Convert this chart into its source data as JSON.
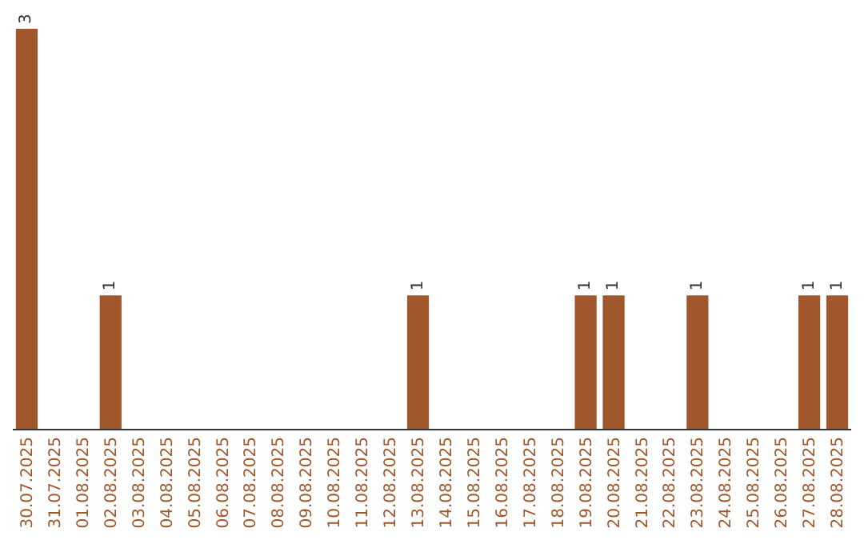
{
  "chart_data": {
    "type": "bar",
    "categories": [
      "30.07.2025",
      "31.07.2025",
      "01.08.2025",
      "02.08.2025",
      "03.08.2025",
      "04.08.2025",
      "05.08.2025",
      "06.08.2025",
      "07.08.2025",
      "08.08.2025",
      "09.08.2025",
      "10.08.2025",
      "11.08.2025",
      "12.08.2025",
      "13.08.2025",
      "14.08.2025",
      "15.08.2025",
      "16.08.2025",
      "17.08.2025",
      "18.08.2025",
      "19.08.2025",
      "20.08.2025",
      "21.08.2025",
      "22.08.2025",
      "23.08.2025",
      "24.08.2025",
      "25.08.2025",
      "26.08.2025",
      "27.08.2025",
      "28.08.2025"
    ],
    "values": [
      3,
      0,
      0,
      1,
      0,
      0,
      0,
      0,
      0,
      0,
      0,
      0,
      0,
      0,
      1,
      0,
      0,
      0,
      0,
      0,
      1,
      1,
      0,
      0,
      1,
      0,
      0,
      0,
      1,
      1
    ],
    "value_labels": [
      "3",
      null,
      null,
      "1",
      null,
      null,
      null,
      null,
      null,
      null,
      null,
      null,
      null,
      null,
      "1",
      null,
      null,
      null,
      null,
      null,
      "1",
      "1",
      null,
      null,
      "1",
      null,
      null,
      null,
      "1",
      "1"
    ],
    "color": "#a0572b",
    "ylim": [
      0,
      3
    ],
    "tick_labels": "x",
    "legend": false
  }
}
